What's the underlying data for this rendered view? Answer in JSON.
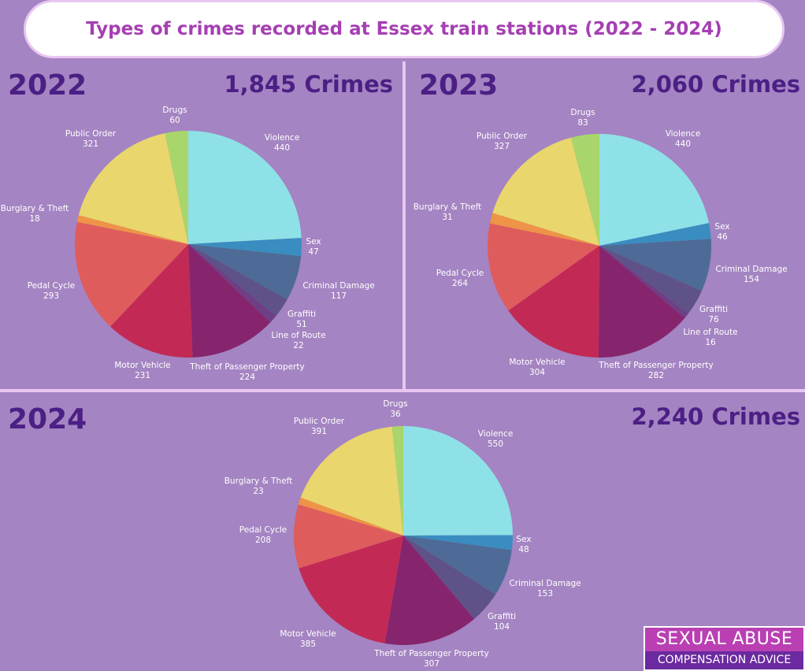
{
  "title": "Types of crimes recorded at Essex train stations (2022 - 2024)",
  "logo": {
    "line1": "SEXUAL ABUSE",
    "line2": "COMPENSATION ADVICE"
  },
  "colors": {
    "Violence": "#8fe1e8",
    "Sex": "#3a8dc0",
    "Criminal Damage": "#4d6b96",
    "Graffiti": "#5f5288",
    "Line of Route": "#6d3f85",
    "Theft of Passenger Property": "#86256d",
    "Motor Vehicle": "#c22a55",
    "Pedal Cycle": "#df5c5c",
    "Burglary & Theft": "#ee9347",
    "Public Order": "#e9d66c",
    "Drugs": "#a8d66c"
  },
  "chart_data": [
    {
      "type": "pie",
      "year": "2022",
      "total_label": "1,845 Crimes",
      "slices": [
        {
          "name": "Violence",
          "value": 440
        },
        {
          "name": "Sex",
          "value": 47
        },
        {
          "name": "Criminal Damage",
          "value": 117
        },
        {
          "name": "Graffiti",
          "value": 51
        },
        {
          "name": "Line of Route",
          "value": 22
        },
        {
          "name": "Theft of Passenger Property",
          "value": 224
        },
        {
          "name": "Motor Vehicle",
          "value": 231
        },
        {
          "name": "Pedal Cycle",
          "value": 293
        },
        {
          "name": "Burglary & Theft",
          "value": 18
        },
        {
          "name": "Public Order",
          "value": 321
        },
        {
          "name": "Drugs",
          "value": 60
        }
      ]
    },
    {
      "type": "pie",
      "year": "2023",
      "total_label": "2,060 Crimes",
      "slices": [
        {
          "name": "Violence",
          "value": 440
        },
        {
          "name": "Sex",
          "value": 46
        },
        {
          "name": "Criminal Damage",
          "value": 154
        },
        {
          "name": "Graffiti",
          "value": 76
        },
        {
          "name": "Line of Route",
          "value": 16
        },
        {
          "name": "Theft of Passenger Property",
          "value": 282
        },
        {
          "name": "Motor Vehicle",
          "value": 304
        },
        {
          "name": "Pedal Cycle",
          "value": 264
        },
        {
          "name": "Burglary & Theft",
          "value": 31
        },
        {
          "name": "Public Order",
          "value": 327
        },
        {
          "name": "Drugs",
          "value": 83
        }
      ]
    },
    {
      "type": "pie",
      "year": "2024",
      "total_label": "2,240 Crimes",
      "slices": [
        {
          "name": "Violence",
          "value": 550
        },
        {
          "name": "Sex",
          "value": 48
        },
        {
          "name": "Criminal Damage",
          "value": 153
        },
        {
          "name": "Graffiti",
          "value": 104
        },
        {
          "name": "Theft of Passenger Property",
          "value": 307
        },
        {
          "name": "Motor Vehicle",
          "value": 385
        },
        {
          "name": "Pedal Cycle",
          "value": 208
        },
        {
          "name": "Burglary & Theft",
          "value": 23
        },
        {
          "name": "Public Order",
          "value": 391
        },
        {
          "name": "Drugs",
          "value": 36
        }
      ]
    }
  ]
}
